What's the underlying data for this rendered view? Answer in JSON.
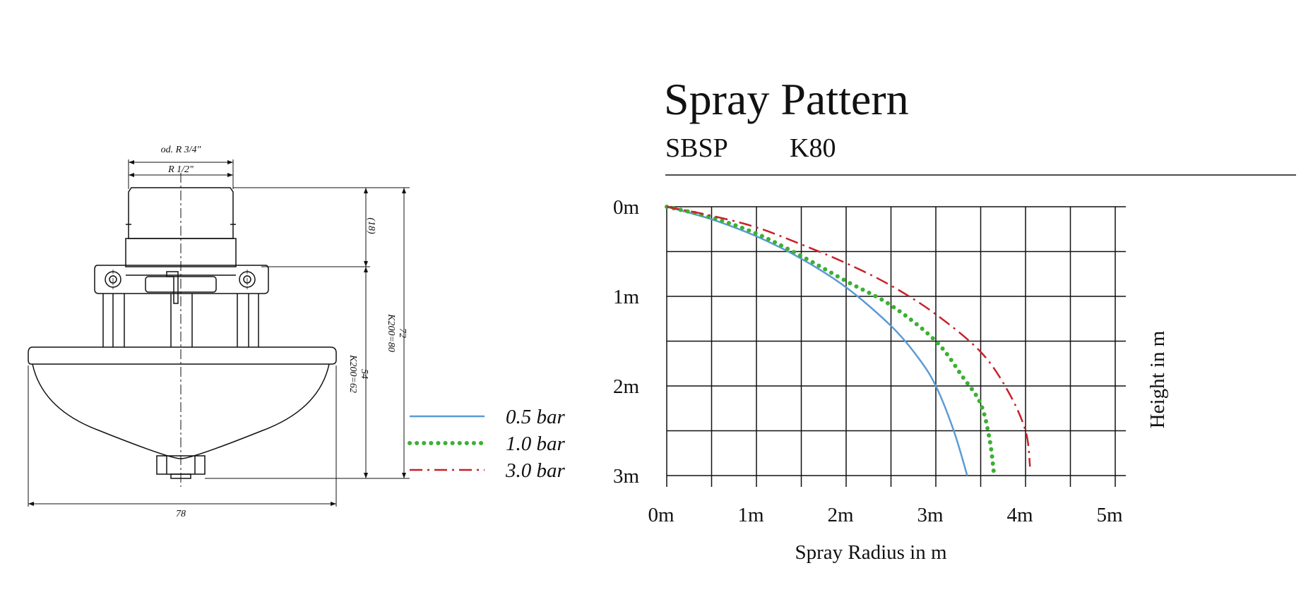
{
  "drawing": {
    "dim_outer_thread": "od. R 3/4\"",
    "dim_inner_thread": "R 1/2\"",
    "dim_18": "(18)",
    "dim_72": "72",
    "dim_k200_80": "K200=80",
    "dim_54": "54",
    "dim_k200_62": "K200=62",
    "dim_78": "78"
  },
  "chart_data": {
    "type": "line",
    "title": "Spray Pattern",
    "subtitle_model": "SBSP",
    "subtitle_k": "K80",
    "xlabel": "Spray Radius in m",
    "ylabel": "Height in m",
    "xlim": [
      0,
      5.2
    ],
    "ylim": [
      0,
      3
    ],
    "y_inverted": true,
    "x_ticks": [
      "0m",
      "1m",
      "2m",
      "3m",
      "4m",
      "5m"
    ],
    "y_ticks": [
      "0m",
      "1m",
      "2m",
      "3m"
    ],
    "grid": true,
    "legend_position": "left",
    "series": [
      {
        "name": "0.5 bar",
        "color": "#5b9bd5",
        "style": "solid",
        "x": [
          0,
          0.5,
          1.0,
          1.5,
          2.0,
          2.5,
          2.8,
          3.0,
          3.2,
          3.35
        ],
        "y": [
          0,
          0.14,
          0.33,
          0.58,
          0.9,
          1.33,
          1.68,
          2.0,
          2.5,
          3.0
        ]
      },
      {
        "name": "1.0 bar",
        "color": "#3cb034",
        "style": "dotted",
        "x": [
          0,
          0.5,
          1.0,
          1.5,
          2.0,
          2.5,
          3.0,
          3.3,
          3.5,
          3.6,
          3.65
        ],
        "y": [
          0,
          0.12,
          0.3,
          0.55,
          0.83,
          1.1,
          1.5,
          1.9,
          2.2,
          2.6,
          3.0
        ]
      },
      {
        "name": "3.0 bar",
        "color": "#c8202a",
        "style": "dashdot",
        "x": [
          0,
          0.5,
          1.0,
          1.5,
          2.0,
          2.5,
          3.0,
          3.5,
          3.8,
          4.0,
          4.05
        ],
        "y": [
          0,
          0.1,
          0.23,
          0.42,
          0.63,
          0.88,
          1.2,
          1.62,
          2.05,
          2.5,
          2.9
        ]
      }
    ]
  }
}
